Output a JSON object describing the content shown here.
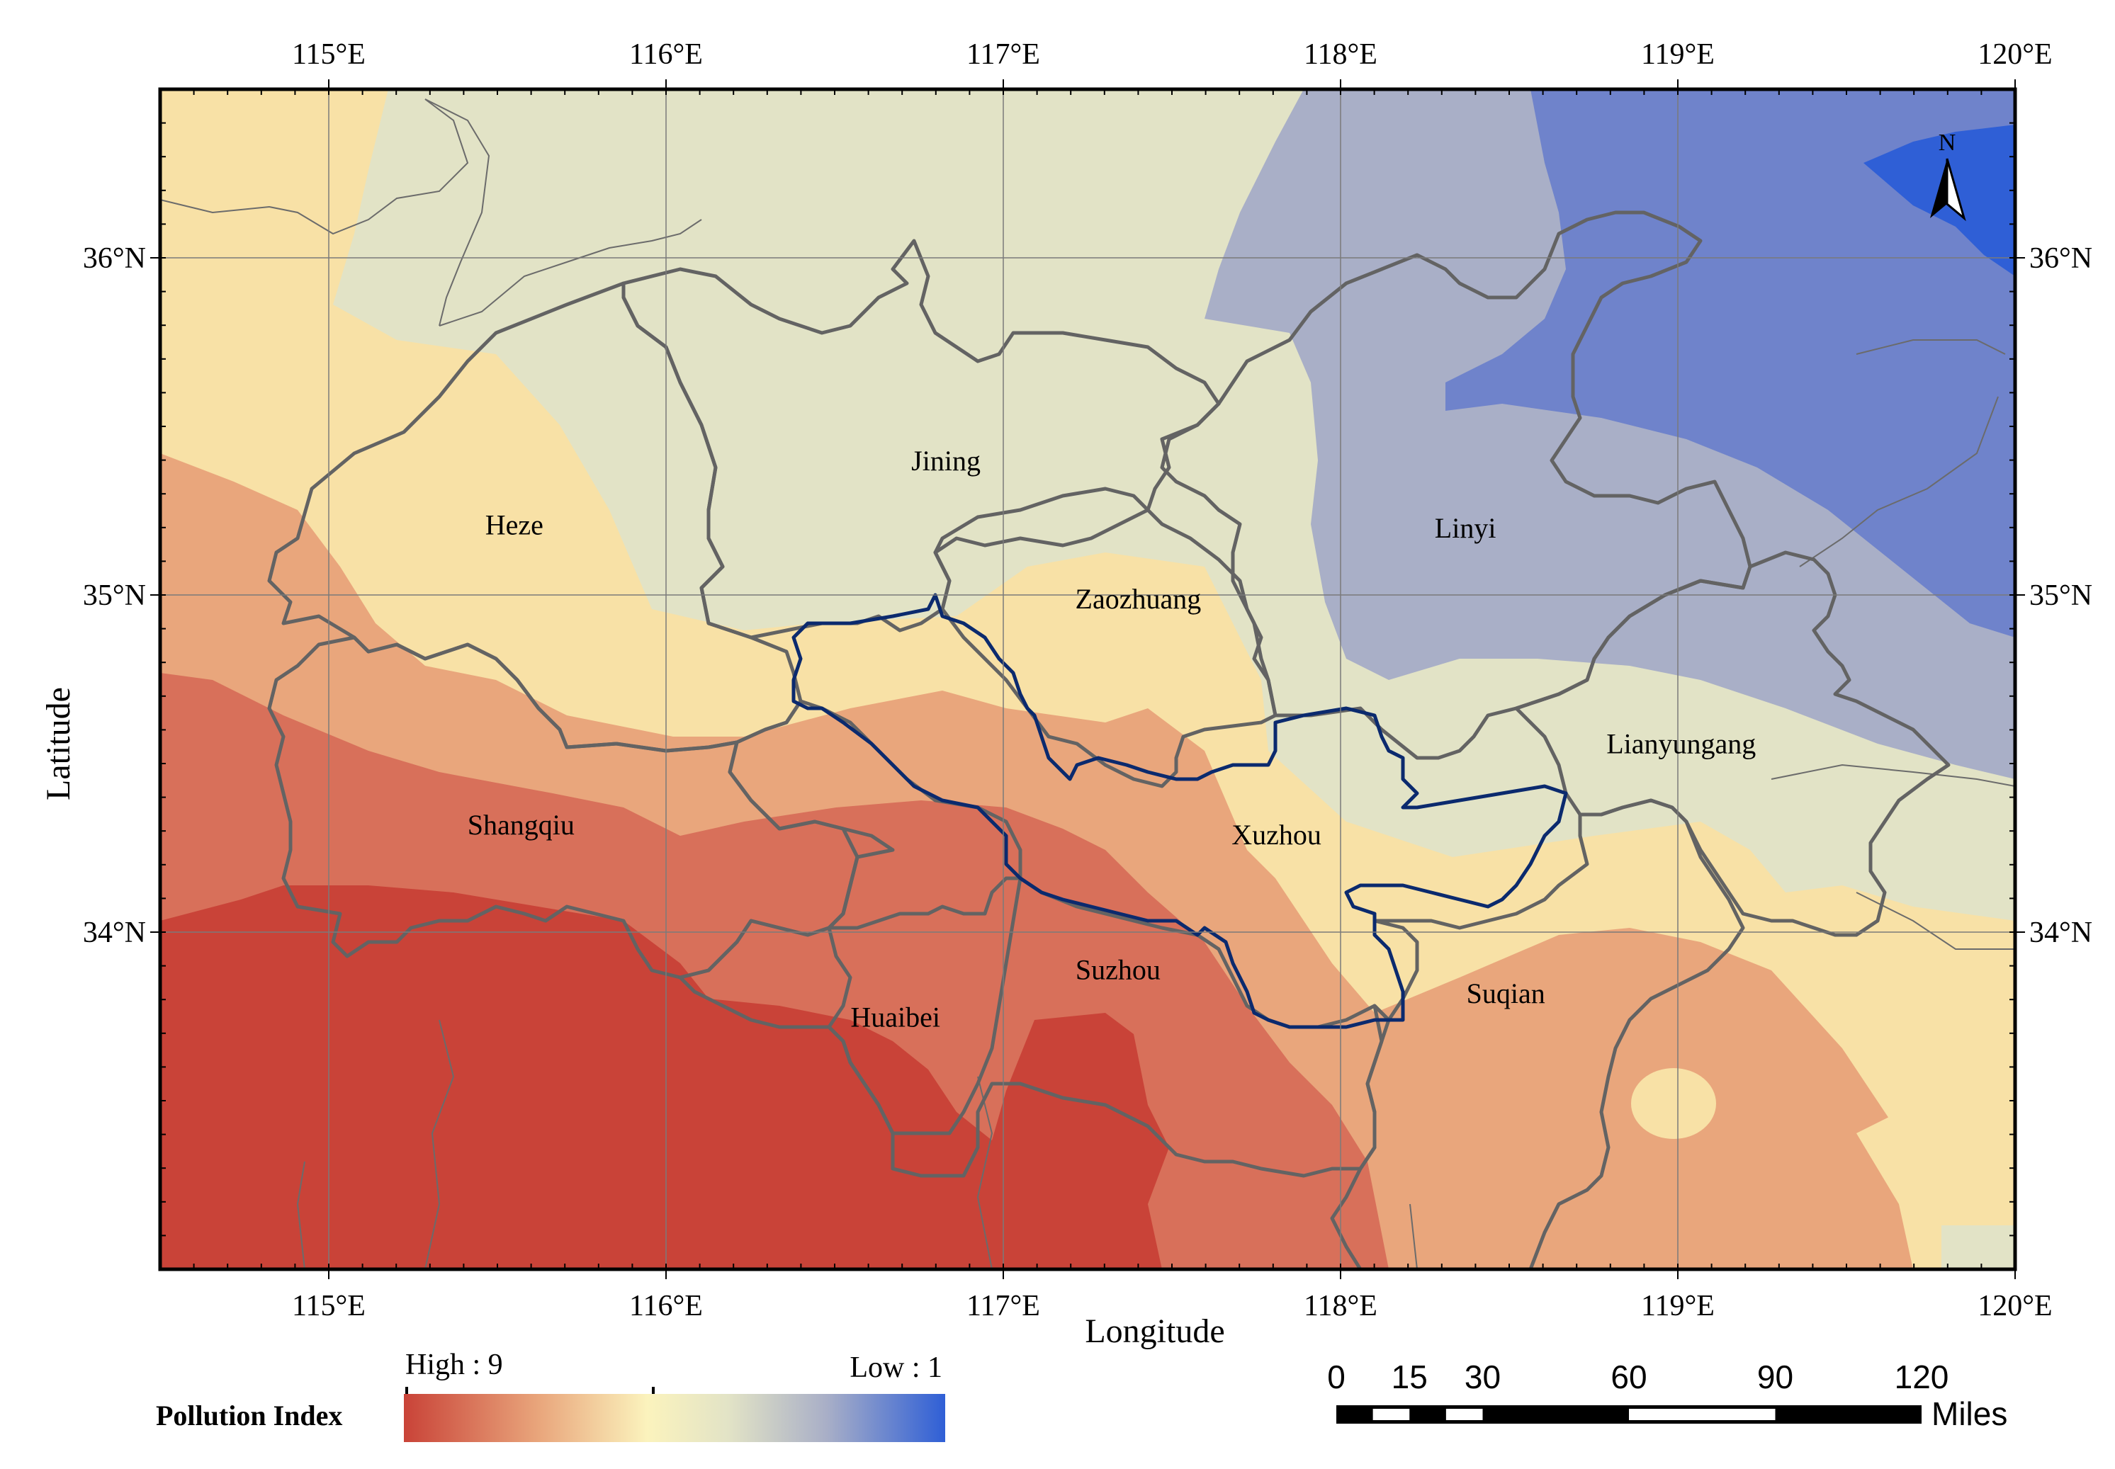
{
  "map": {
    "longitude_ticks": [
      "115°E",
      "116°E",
      "117°E",
      "118°E",
      "119°E",
      "120°E"
    ],
    "latitude_ticks": [
      "36°N",
      "35°N",
      "34°N"
    ],
    "x_axis_label": "Longitude",
    "y_axis_label": "Latitude",
    "extent": {
      "lon_min": 114.5,
      "lon_max": 120.0,
      "lat_min": 33.0,
      "lat_max": 36.5
    },
    "cities": [
      {
        "name": "Heze",
        "lon": 115.55,
        "lat": 35.18
      },
      {
        "name": "Jining",
        "lon": 116.83,
        "lat": 35.37
      },
      {
        "name": "Linyi",
        "lon": 118.37,
        "lat": 35.17
      },
      {
        "name": "Zaozhuang",
        "lon": 117.4,
        "lat": 34.96
      },
      {
        "name": "Lianyungang",
        "lon": 119.01,
        "lat": 34.53
      },
      {
        "name": "Shangqiu",
        "lon": 115.57,
        "lat": 34.29
      },
      {
        "name": "Xuzhou",
        "lon": 117.81,
        "lat": 34.26
      },
      {
        "name": "Suzhou",
        "lon": 117.34,
        "lat": 33.86
      },
      {
        "name": "Huaibei",
        "lon": 116.68,
        "lat": 33.72
      },
      {
        "name": "Suqian",
        "lon": 118.49,
        "lat": 33.79
      }
    ],
    "north_arrow_label": "N",
    "colors": {
      "high": "#c94338",
      "mid_high": "#e9a67c",
      "mid": "#f8e1a6",
      "mid_low": "#e2e3c6",
      "low_mid": "#a9afc7",
      "low": "#6f83cb",
      "lowest": "#2f5fd6"
    }
  },
  "legend": {
    "title": "Pollution Index",
    "high_label": "High : 9",
    "low_label": "Low : 1"
  },
  "scale_bar": {
    "ticks": [
      "0",
      "15",
      "30",
      "60",
      "90",
      "120"
    ],
    "unit": "Miles"
  }
}
